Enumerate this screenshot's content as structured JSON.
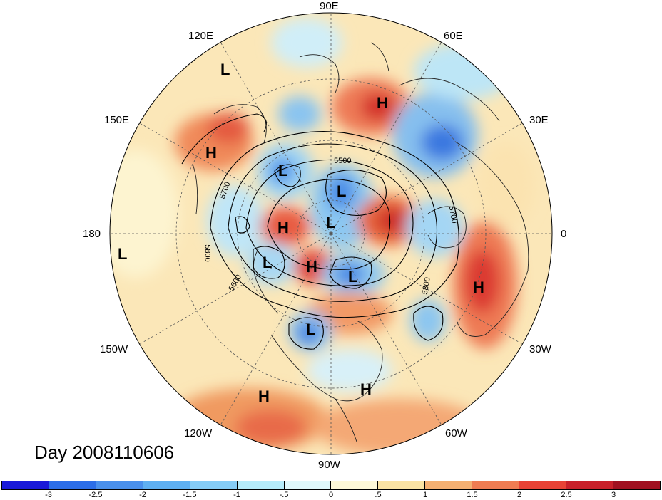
{
  "title": "Day 2008110606",
  "longitude_labels": {
    "e90": "90E",
    "e60": "60E",
    "e30": "30E",
    "zero": "0",
    "w30": "30W",
    "w60": "60W",
    "w90": "90W",
    "w120": "120W",
    "w150": "150W",
    "w180": "180",
    "e150": "150E",
    "e120": "120E"
  },
  "pressure_systems": [
    {
      "type": "H",
      "label": "H"
    },
    {
      "type": "H",
      "label": "H"
    },
    {
      "type": "H",
      "label": "H"
    },
    {
      "type": "H",
      "label": "H"
    },
    {
      "type": "H",
      "label": "H"
    },
    {
      "type": "H",
      "label": "H"
    },
    {
      "type": "H",
      "label": "H"
    },
    {
      "type": "L",
      "label": "L"
    },
    {
      "type": "L",
      "label": "L"
    },
    {
      "type": "L",
      "label": "L"
    },
    {
      "type": "L",
      "label": "L"
    },
    {
      "type": "L",
      "label": "L"
    },
    {
      "type": "L",
      "label": "L"
    },
    {
      "type": "L",
      "label": "L"
    },
    {
      "type": "L",
      "label": "L"
    }
  ],
  "contour_labels": [
    "5500",
    "5700",
    "5800",
    "5600",
    "5700",
    "5800"
  ],
  "colorbar": {
    "ticks": [
      "-3",
      "-2.5",
      "-2",
      "-1.5",
      "-1",
      "-.5",
      "0",
      ".5",
      "1",
      "1.5",
      "2",
      "2.5",
      "3"
    ],
    "colors": [
      "#1a1ad8",
      "#2c6ee8",
      "#4a90ec",
      "#5fb0f2",
      "#86cdf6",
      "#b6ecfa",
      "#e0f8fb",
      "#fdf8d8",
      "#fae3a4",
      "#f5b072",
      "#f07c52",
      "#e84235",
      "#c8202a",
      "#a01020"
    ]
  }
}
